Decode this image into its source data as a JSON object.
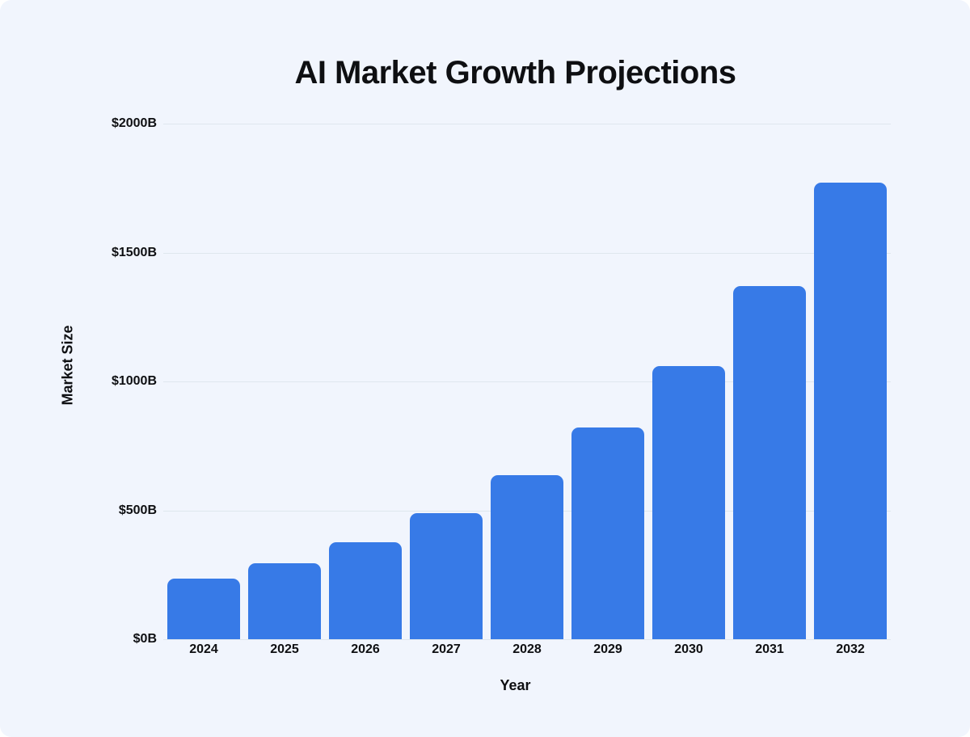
{
  "page": {
    "background_color": "#f1f5fd",
    "text_color": "#0e0f12"
  },
  "chart_data": {
    "type": "bar",
    "title": "AI Market Growth Projections",
    "xlabel": "Year",
    "ylabel": "Market Size",
    "categories": [
      "2024",
      "2025",
      "2026",
      "2027",
      "2028",
      "2029",
      "2030",
      "2031",
      "2032"
    ],
    "values": [
      235,
      295,
      375,
      490,
      635,
      820,
      1060,
      1370,
      1770
    ],
    "ylim": [
      0,
      2000
    ],
    "yticks": [
      {
        "value": 2000,
        "label": "$2000B"
      },
      {
        "value": 1500,
        "label": "$1500B"
      },
      {
        "value": 1000,
        "label": "$1000B"
      },
      {
        "value": 500,
        "label": "$500B"
      },
      {
        "value": 0,
        "label": "$0B"
      }
    ],
    "grid": true,
    "legend": "none",
    "bar_color": "#377ae7",
    "gridline_color": "#dfe7ee"
  }
}
